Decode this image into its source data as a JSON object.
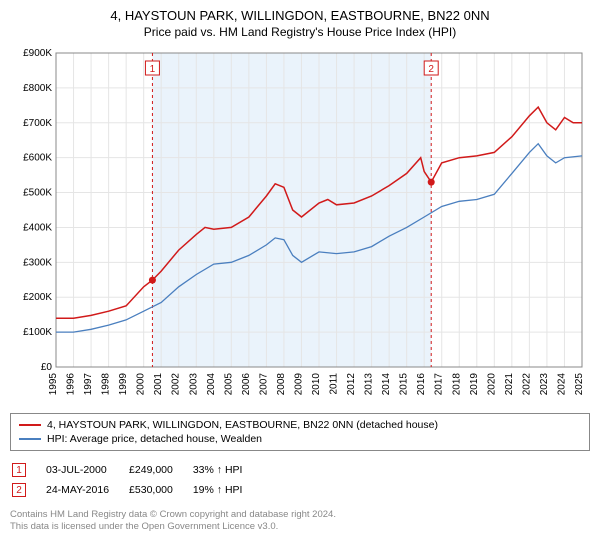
{
  "title": "4, HAYSTOUN PARK, WILLINGDON, EASTBOURNE, BN22 0NN",
  "subtitle": "Price paid vs. HM Land Registry's House Price Index (HPI)",
  "chart": {
    "type": "line",
    "background_color": "#ffffff",
    "shaded_band_color": "#eaf3fb",
    "grid_color": "#e5e5e5",
    "axis_color": "#888888",
    "tick_fontsize": 10,
    "y": {
      "label_prefix": "£",
      "label_suffix": "K",
      "min": 0,
      "max": 900,
      "step": 100,
      "ticks": [
        0,
        100,
        200,
        300,
        400,
        500,
        600,
        700,
        800,
        900
      ]
    },
    "x": {
      "years": [
        1995,
        1996,
        1997,
        1998,
        1999,
        2000,
        2001,
        2002,
        2003,
        2004,
        2005,
        2006,
        2007,
        2008,
        2009,
        2010,
        2011,
        2012,
        2013,
        2014,
        2015,
        2016,
        2017,
        2018,
        2019,
        2020,
        2021,
        2022,
        2023,
        2024,
        2025
      ]
    },
    "shaded_band": {
      "from_year": 2000.5,
      "to_year": 2016.4
    },
    "series": [
      {
        "id": "price_paid",
        "label": "4, HAYSTOUN PARK, WILLINGDON, EASTBOURNE, BN22 0NN (detached house)",
        "color": "#d11a1a",
        "line_width": 1.5,
        "points": [
          [
            1995,
            140
          ],
          [
            1996,
            140
          ],
          [
            1997,
            148
          ],
          [
            1998,
            160
          ],
          [
            1999,
            175
          ],
          [
            2000,
            230
          ],
          [
            2000.5,
            249
          ],
          [
            2001,
            275
          ],
          [
            2002,
            335
          ],
          [
            2003,
            380
          ],
          [
            2003.5,
            400
          ],
          [
            2004,
            395
          ],
          [
            2005,
            400
          ],
          [
            2006,
            430
          ],
          [
            2006.5,
            460
          ],
          [
            2007,
            490
          ],
          [
            2007.5,
            525
          ],
          [
            2008,
            515
          ],
          [
            2008.5,
            450
          ],
          [
            2009,
            430
          ],
          [
            2010,
            470
          ],
          [
            2010.5,
            480
          ],
          [
            2011,
            465
          ],
          [
            2012,
            470
          ],
          [
            2013,
            490
          ],
          [
            2014,
            520
          ],
          [
            2015,
            555
          ],
          [
            2015.8,
            600
          ],
          [
            2016,
            560
          ],
          [
            2016.4,
            530
          ],
          [
            2017,
            585
          ],
          [
            2018,
            600
          ],
          [
            2019,
            605
          ],
          [
            2020,
            615
          ],
          [
            2021,
            660
          ],
          [
            2022,
            720
          ],
          [
            2022.5,
            745
          ],
          [
            2023,
            700
          ],
          [
            2023.5,
            680
          ],
          [
            2024,
            715
          ],
          [
            2024.5,
            700
          ],
          [
            2025,
            700
          ]
        ]
      },
      {
        "id": "hpi",
        "label": "HPI: Average price, detached house, Wealden",
        "color": "#4a7fbf",
        "line_width": 1.3,
        "points": [
          [
            1995,
            100
          ],
          [
            1996,
            100
          ],
          [
            1997,
            108
          ],
          [
            1998,
            120
          ],
          [
            1999,
            135
          ],
          [
            2000,
            160
          ],
          [
            2001,
            185
          ],
          [
            2002,
            230
          ],
          [
            2003,
            265
          ],
          [
            2004,
            295
          ],
          [
            2005,
            300
          ],
          [
            2006,
            320
          ],
          [
            2007,
            350
          ],
          [
            2007.5,
            370
          ],
          [
            2008,
            365
          ],
          [
            2008.5,
            320
          ],
          [
            2009,
            300
          ],
          [
            2010,
            330
          ],
          [
            2011,
            325
          ],
          [
            2012,
            330
          ],
          [
            2013,
            345
          ],
          [
            2014,
            375
          ],
          [
            2015,
            400
          ],
          [
            2016,
            430
          ],
          [
            2017,
            460
          ],
          [
            2018,
            475
          ],
          [
            2019,
            480
          ],
          [
            2020,
            495
          ],
          [
            2021,
            555
          ],
          [
            2022,
            615
          ],
          [
            2022.5,
            640
          ],
          [
            2023,
            605
          ],
          [
            2023.5,
            585
          ],
          [
            2024,
            600
          ],
          [
            2025,
            605
          ]
        ]
      }
    ],
    "markers": [
      {
        "num": "1",
        "year": 2000.5,
        "value": 249,
        "color": "#d11a1a"
      },
      {
        "num": "2",
        "year": 2016.4,
        "value": 530,
        "color": "#d11a1a"
      }
    ],
    "vertical_dashed_color": "#d11a1a",
    "marker_box_border": "#d11a1a",
    "marker_box_bg": "#ffffff"
  },
  "legend": {
    "items": [
      {
        "color": "#d11a1a",
        "label": "4, HAYSTOUN PARK, WILLINGDON, EASTBOURNE, BN22 0NN (detached house)"
      },
      {
        "color": "#4a7fbf",
        "label": "HPI: Average price, detached house, Wealden"
      }
    ]
  },
  "transactions": [
    {
      "num": "1",
      "date": "03-JUL-2000",
      "price": "£249,000",
      "diff": "33%",
      "arrow": "↑",
      "diff_label": "HPI",
      "color": "#d11a1a"
    },
    {
      "num": "2",
      "date": "24-MAY-2016",
      "price": "£530,000",
      "diff": "19%",
      "arrow": "↑",
      "diff_label": "HPI",
      "color": "#d11a1a"
    }
  ],
  "footer": {
    "line1": "Contains HM Land Registry data © Crown copyright and database right 2024.",
    "line2": "This data is licensed under the Open Government Licence v3.0."
  }
}
